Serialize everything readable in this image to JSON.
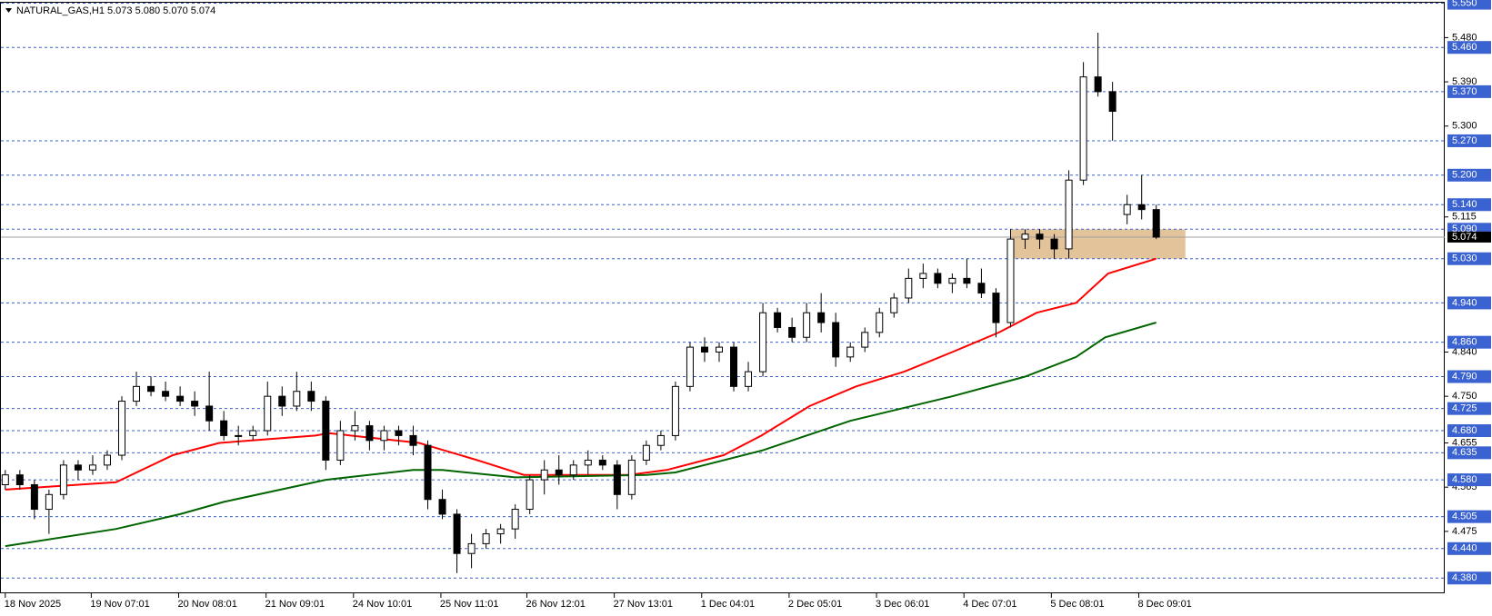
{
  "chart_data": {
    "type": "candlestick",
    "title": "NATURAL_GAS,H1",
    "quote": "5.073 5.080 5.070 5.074",
    "open": [
      4.57,
      4.59,
      4.57,
      4.52,
      4.55,
      4.61,
      4.6,
      4.61,
      4.63,
      4.74,
      4.77,
      4.76,
      4.75,
      4.74,
      4.73,
      4.7,
      4.67,
      4.67,
      4.68,
      4.75,
      4.73,
      4.76,
      4.74,
      4.62,
      4.68,
      4.69,
      4.66,
      4.68,
      4.67,
      4.65,
      4.54,
      4.51,
      4.43,
      4.45,
      4.47,
      4.48,
      4.52,
      4.58,
      4.6,
      4.59,
      4.61,
      4.62,
      4.61,
      4.55,
      4.62,
      4.65,
      4.67,
      4.77,
      4.85,
      4.84,
      4.85,
      4.77,
      4.8,
      4.92,
      4.89,
      4.87,
      4.92,
      4.9,
      4.83,
      4.85,
      4.88,
      4.92,
      4.95,
      4.99,
      5.0,
      4.98,
      4.99,
      4.98,
      4.96,
      4.9,
      5.07,
      5.08,
      5.07,
      5.05,
      5.19,
      5.4,
      5.37,
      5.12,
      5.14,
      5.13
    ],
    "high": [
      4.6,
      4.6,
      4.58,
      4.56,
      4.62,
      4.62,
      4.63,
      4.64,
      4.75,
      4.8,
      4.79,
      4.78,
      4.77,
      4.76,
      4.8,
      4.72,
      4.69,
      4.69,
      4.78,
      4.77,
      4.8,
      4.78,
      4.75,
      4.7,
      4.72,
      4.7,
      4.69,
      4.69,
      4.69,
      4.66,
      4.56,
      4.52,
      4.47,
      4.48,
      4.49,
      4.53,
      4.59,
      4.62,
      4.63,
      4.62,
      4.64,
      4.63,
      4.62,
      4.63,
      4.66,
      4.68,
      4.78,
      4.86,
      4.87,
      4.86,
      4.86,
      4.82,
      4.94,
      4.93,
      4.91,
      4.94,
      4.96,
      4.92,
      4.86,
      4.89,
      4.93,
      4.96,
      5.01,
      5.02,
      5.01,
      5.0,
      5.03,
      5.01,
      4.97,
      5.09,
      5.09,
      5.09,
      5.08,
      5.21,
      5.43,
      5.49,
      5.39,
      5.16,
      5.2,
      5.14
    ],
    "low": [
      4.56,
      4.56,
      4.5,
      4.47,
      4.54,
      4.58,
      4.59,
      4.6,
      4.62,
      4.73,
      4.75,
      4.74,
      4.73,
      4.71,
      4.68,
      4.66,
      4.65,
      4.66,
      4.67,
      4.71,
      4.72,
      4.72,
      4.6,
      4.61,
      4.66,
      4.64,
      4.64,
      4.65,
      4.63,
      4.52,
      4.5,
      4.39,
      4.4,
      4.44,
      4.45,
      4.46,
      4.51,
      4.55,
      4.57,
      4.58,
      4.59,
      4.6,
      4.52,
      4.54,
      4.61,
      4.64,
      4.66,
      4.76,
      4.82,
      4.82,
      4.76,
      4.76,
      4.79,
      4.88,
      4.86,
      4.86,
      4.88,
      4.81,
      4.82,
      4.84,
      4.87,
      4.91,
      4.94,
      4.97,
      4.97,
      4.96,
      4.97,
      4.95,
      4.87,
      4.89,
      5.05,
      5.05,
      5.03,
      5.03,
      5.18,
      5.36,
      5.27,
      5.1,
      5.11,
      5.07
    ],
    "close": [
      4.59,
      4.57,
      4.52,
      4.55,
      4.61,
      4.6,
      4.61,
      4.63,
      4.74,
      4.77,
      4.76,
      4.75,
      4.74,
      4.73,
      4.7,
      4.67,
      4.67,
      4.68,
      4.75,
      4.73,
      4.76,
      4.74,
      4.62,
      4.68,
      4.69,
      4.66,
      4.68,
      4.67,
      4.65,
      4.54,
      4.51,
      4.43,
      4.45,
      4.47,
      4.48,
      4.52,
      4.58,
      4.6,
      4.59,
      4.61,
      4.62,
      4.61,
      4.55,
      4.62,
      4.65,
      4.67,
      4.77,
      4.85,
      4.84,
      4.85,
      4.77,
      4.8,
      4.92,
      4.89,
      4.87,
      4.92,
      4.9,
      4.83,
      4.85,
      4.88,
      4.92,
      4.95,
      4.99,
      5.0,
      4.98,
      4.99,
      4.98,
      4.96,
      4.9,
      5.07,
      5.08,
      5.07,
      5.05,
      5.19,
      5.4,
      5.37,
      5.33,
      5.14,
      5.13,
      5.074
    ],
    "up_color": "#ffffff",
    "down_color": "#000000",
    "outline_color": "#000000",
    "lines": [
      {
        "color": "#ff0000",
        "x": [
          0,
          7.6,
          11.5,
          14.7,
          21.3,
          22.2,
          28.4,
          32.4,
          35.6,
          42.8,
          45.4,
          49.3,
          51.9,
          55.2,
          58.4,
          61.7,
          65,
          68.2,
          70.8,
          73.5,
          75.7,
          79
        ],
        "values": [
          4.56,
          4.575,
          4.63,
          4.655,
          4.67,
          4.675,
          4.655,
          4.62,
          4.59,
          4.59,
          4.6,
          4.63,
          4.67,
          4.73,
          4.77,
          4.8,
          4.84,
          4.88,
          4.92,
          4.94,
          5.0,
          5.03
        ]
      },
      {
        "color": "#006400",
        "x": [
          0,
          7.6,
          12,
          15,
          22,
          28,
          30,
          35,
          44,
          46,
          52,
          58,
          65,
          70,
          73.5,
          75.5,
          79
        ],
        "values": [
          4.445,
          4.48,
          4.51,
          4.535,
          4.58,
          4.6,
          4.6,
          4.585,
          4.59,
          4.595,
          4.64,
          4.7,
          4.75,
          4.79,
          4.83,
          4.87,
          4.9
        ]
      }
    ],
    "zone": {
      "x": [
        69,
        81
      ],
      "y": [
        5.03,
        5.09
      ],
      "color": "#deb887"
    },
    "level_color": "#3a62d0",
    "levels": [
      {
        "value": 5.55,
        "label": "5.550"
      },
      {
        "value": 5.46,
        "label": "5.460"
      },
      {
        "value": 5.37,
        "label": "5.370"
      },
      {
        "value": 5.27,
        "label": "5.270"
      },
      {
        "value": 5.2,
        "label": "5.200"
      },
      {
        "value": 5.14,
        "label": "5.140"
      },
      {
        "value": 5.09,
        "label": "5.090"
      },
      {
        "value": 5.03,
        "label": "5.030"
      },
      {
        "value": 4.94,
        "label": "4.940"
      },
      {
        "value": 4.86,
        "label": "4.860"
      },
      {
        "value": 4.79,
        "label": "4.790"
      },
      {
        "value": 4.725,
        "label": "4.725"
      },
      {
        "value": 4.68,
        "label": "4.680"
      },
      {
        "value": 4.635,
        "label": "4.635"
      },
      {
        "value": 4.58,
        "label": "4.580"
      },
      {
        "value": 4.505,
        "label": "4.505"
      },
      {
        "value": 4.44,
        "label": "4.440"
      },
      {
        "value": 4.38,
        "label": "4.380"
      }
    ],
    "last_price": {
      "value": 5.074,
      "label": "5.074"
    },
    "ylim": [
      4.349,
      5.551
    ],
    "yticks": [
      {
        "value": 5.48,
        "label": "5.480"
      },
      {
        "value": 5.39,
        "label": "5.390"
      },
      {
        "value": 5.3,
        "label": "5.300"
      },
      5.115,
      {
        "value": 4.84,
        "label": "4.840"
      },
      {
        "value": 4.75,
        "label": "4.750"
      },
      4.655,
      4.565,
      4.475
    ],
    "xlim": [
      -0.3,
      98.8
    ],
    "xticks": [
      {
        "value": 0,
        "label": "18 Nov 2025"
      },
      {
        "value": 5.9,
        "label": "19 Nov 07:01"
      },
      {
        "value": 11.9,
        "label": "20 Nov 08:01"
      },
      {
        "value": 17.9,
        "label": "21 Nov 09:01"
      },
      {
        "value": 23.9,
        "label": "24 Nov 10:01"
      },
      {
        "value": 29.9,
        "label": "25 Nov 11:01"
      },
      {
        "value": 35.8,
        "label": "26 Nov 12:01"
      },
      {
        "value": 41.8,
        "label": "27 Nov 13:01"
      },
      {
        "value": 47.8,
        "label": "1 Dec 04:01"
      },
      {
        "value": 53.8,
        "label": "2 Dec 05:01"
      },
      {
        "value": 59.8,
        "label": "3 Dec 06:01"
      },
      {
        "value": 65.8,
        "label": "4 Dec 07:01"
      },
      {
        "value": 71.8,
        "label": "5 Dec 08:01"
      },
      {
        "value": 77.8,
        "label": "8 Dec 09:01"
      }
    ]
  }
}
